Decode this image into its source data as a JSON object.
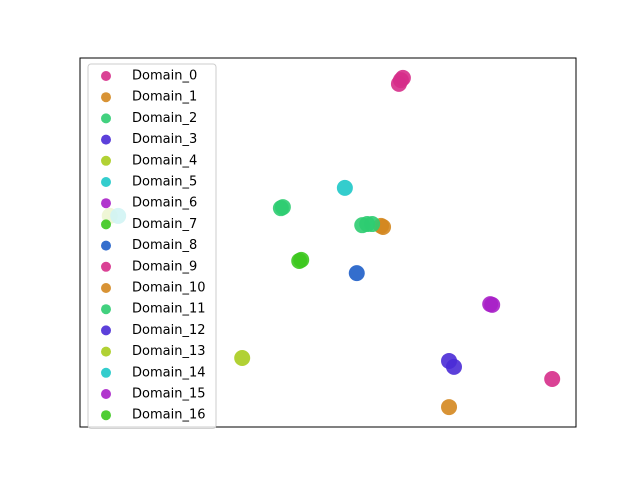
{
  "chart_data": {
    "type": "scatter",
    "xlim": [
      0,
      100
    ],
    "ylim": [
      0,
      100
    ],
    "legend": "upper left",
    "series": [
      {
        "name": "Domain_0",
        "color": "#d62d8a",
        "x": [
          64.7,
          64.3,
          65.1
        ],
        "values": [
          94.0,
          93.0,
          94.6
        ]
      },
      {
        "name": "Domain_1",
        "color": "#d4871f",
        "x": [
          60.7,
          61.1
        ],
        "values": [
          54.5,
          54.2
        ]
      },
      {
        "name": "Domain_2",
        "color": "#2ecc71",
        "x": [
          40.9,
          40.5
        ],
        "values": [
          59.6,
          59.3
        ]
      },
      {
        "name": "Domain_3",
        "color": "#4a2bd6",
        "x": [
          74.4
        ],
        "values": [
          17.9
        ]
      },
      {
        "name": "Domain_4",
        "color": "#a8cc1e",
        "x": [
          32.7
        ],
        "values": [
          18.7
        ]
      },
      {
        "name": "Domain_5",
        "color": "#1ec8c8",
        "x": [
          53.4
        ],
        "values": [
          64.8
        ]
      },
      {
        "name": "Domain_6",
        "color": "#a820c8",
        "x": [
          82.7
        ],
        "values": [
          33.3
        ]
      },
      {
        "name": "Domain_7",
        "color": "#3cc81e",
        "x": [
          44.6
        ],
        "values": [
          45.3
        ]
      },
      {
        "name": "Domain_8",
        "color": "#1e5ec8",
        "x": [
          55.8
        ],
        "values": [
          41.7
        ]
      },
      {
        "name": "Domain_9",
        "color": "#d62d8a",
        "x": [
          95.2
        ],
        "values": [
          13.0
        ]
      },
      {
        "name": "Domain_10",
        "color": "#d4871f",
        "x": [
          74.4
        ],
        "values": [
          5.4
        ]
      },
      {
        "name": "Domain_11",
        "color": "#2ecc71",
        "x": [
          57.9,
          56.9,
          58.9
        ],
        "values": [
          55.0,
          54.7,
          55.0
        ]
      },
      {
        "name": "Domain_12",
        "color": "#4a2bd6",
        "x": [
          75.4
        ],
        "values": [
          16.3
        ]
      },
      {
        "name": "Domain_13",
        "color": "#a8cc1e",
        "x": [
          6.0
        ],
        "values": [
          57.2
        ]
      },
      {
        "name": "Domain_14",
        "color": "#1ec8c8",
        "x": [
          7.7
        ],
        "values": [
          57.2
        ]
      },
      {
        "name": "Domain_15",
        "color": "#a820c8",
        "x": [
          83.1
        ],
        "values": [
          33.1
        ]
      },
      {
        "name": "Domain_16",
        "color": "#3cc81e",
        "x": [
          44.2
        ],
        "values": [
          45.0
        ]
      }
    ]
  }
}
